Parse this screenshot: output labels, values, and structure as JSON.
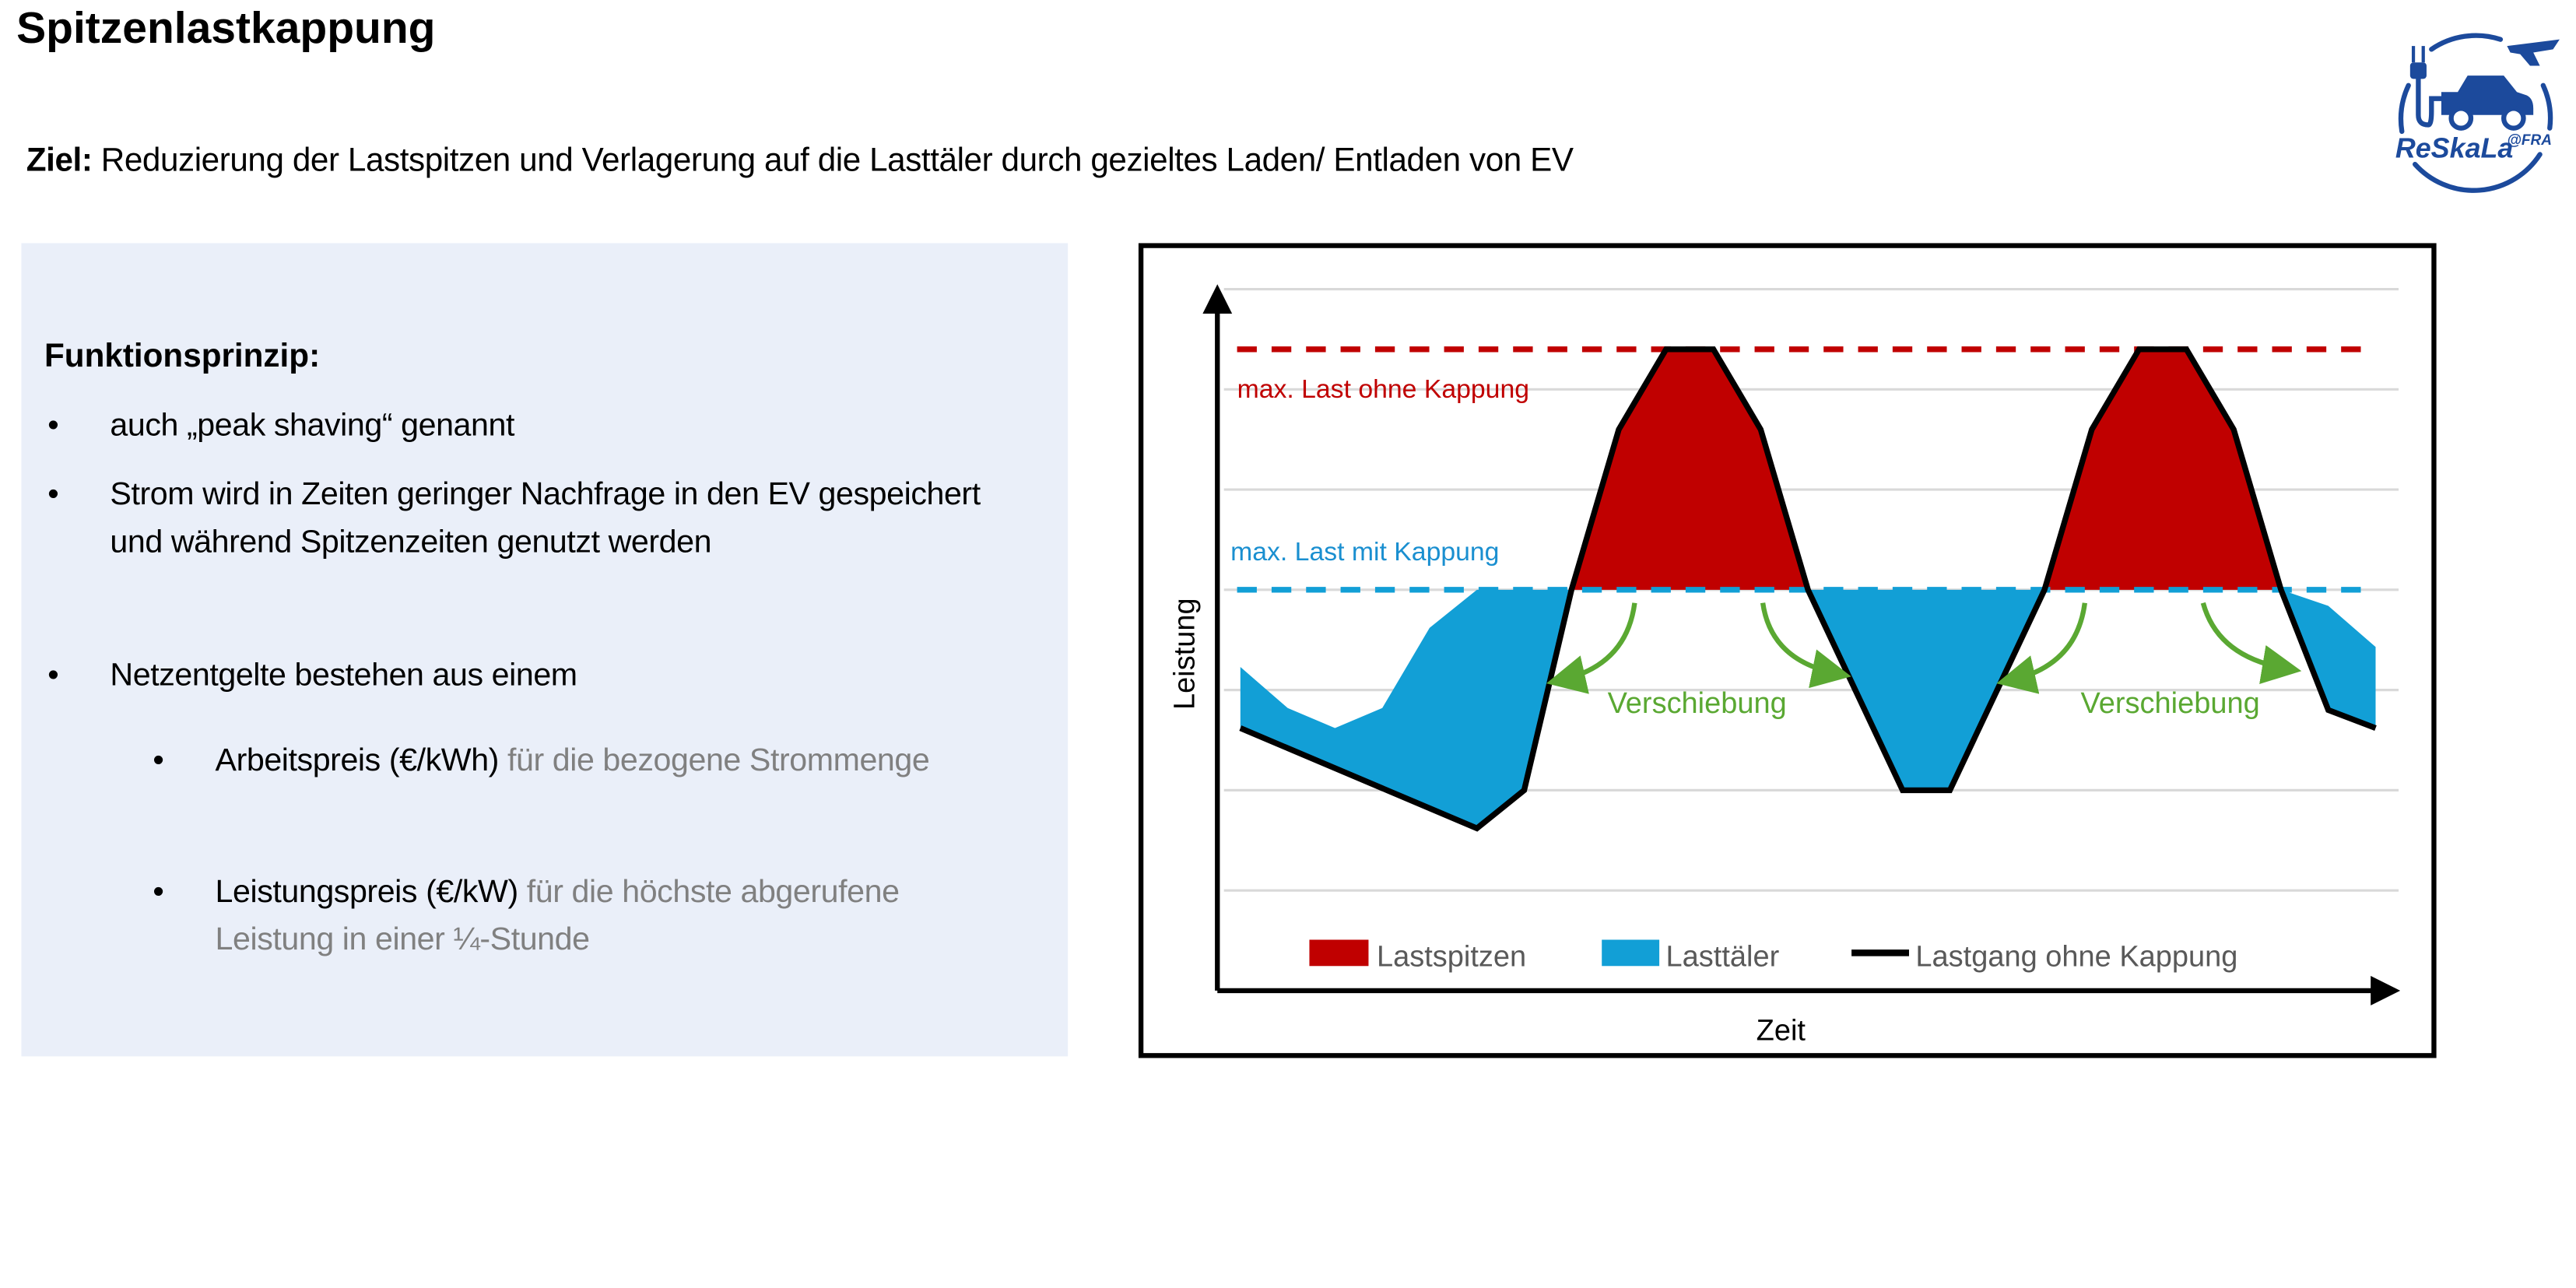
{
  "page": {
    "title": "Spitzenlastkappung",
    "goal_label": "Ziel:",
    "goal_text": "Reduzierung der Lastspitzen und Verlagerung auf die Lasttäler durch gezieltes Laden/ Entladen von EV"
  },
  "logo": {
    "text": "ReSkaLa",
    "suffix": "@FRA",
    "color": "#1c4a9c"
  },
  "panel": {
    "heading": "Funktionsprinzip:",
    "bullets": [
      "auch „peak shaving“ genannt",
      "Strom wird in Zeiten geringer Nachfrage in den EV gespeichert und während Spitzenzeiten genutzt werden",
      "Netzentgelte bestehen aus einem"
    ],
    "sub_bullets": [
      {
        "strong": "Arbeitspreis (€/kWh)",
        "muted": "für die bezogene Strommenge"
      },
      {
        "strong": "Leistungspreis (€/kW)",
        "muted": "für die höchste abgerufene Leistung in einer ¼-Stunde"
      }
    ],
    "background": "#eaeff9"
  },
  "chart_data": {
    "type": "area",
    "xlabel": "Zeit",
    "ylabel": "Leistung",
    "grid": true,
    "x": [
      0,
      1,
      2,
      3,
      4,
      5,
      6,
      7,
      8,
      9,
      10,
      11,
      12,
      13,
      14,
      15,
      16,
      17,
      18,
      19,
      20,
      21,
      22,
      23,
      24
    ],
    "series": [
      {
        "name": "Lastgang ohne Kappung",
        "color": "#000000",
        "values": [
          2.62,
          2.42,
          2.22,
          2.02,
          1.82,
          1.62,
          2.0,
          4.0,
          5.6,
          6.4,
          6.4,
          5.6,
          4.0,
          3.0,
          2.0,
          2.0,
          3.0,
          4.0,
          5.6,
          6.4,
          6.4,
          5.6,
          4.0,
          2.8,
          2.62
        ]
      },
      {
        "values": [
          3.23,
          2.82,
          2.62,
          2.82,
          3.62,
          4.0,
          4.0,
          4.0,
          4.0,
          4.0,
          4.0,
          4.0,
          4.0,
          4.0,
          4.0,
          4.0,
          4.0,
          4.0,
          4.0,
          4.0,
          4.0,
          4.0,
          4.0,
          3.84,
          3.43
        ]
      }
    ],
    "areas": [
      {
        "name": "Lastspitzen",
        "color": "#c00000"
      },
      {
        "name": "Lasttäler",
        "color": "#129fd6"
      }
    ],
    "reference_lines": [
      {
        "label": "max. Last ohne Kappung",
        "value": 6.4,
        "color": "#c00000"
      },
      {
        "label": "max. Last mit Kappung",
        "value": 4.0,
        "color": "#129fd6"
      }
    ],
    "annotations": [
      {
        "text": "Verschiebung",
        "color": "#5aa832"
      },
      {
        "text": "Verschiebung",
        "color": "#5aa832"
      }
    ],
    "legend": "bottom",
    "ylim": [
      0,
      7
    ],
    "xlim": [
      0,
      24
    ]
  }
}
